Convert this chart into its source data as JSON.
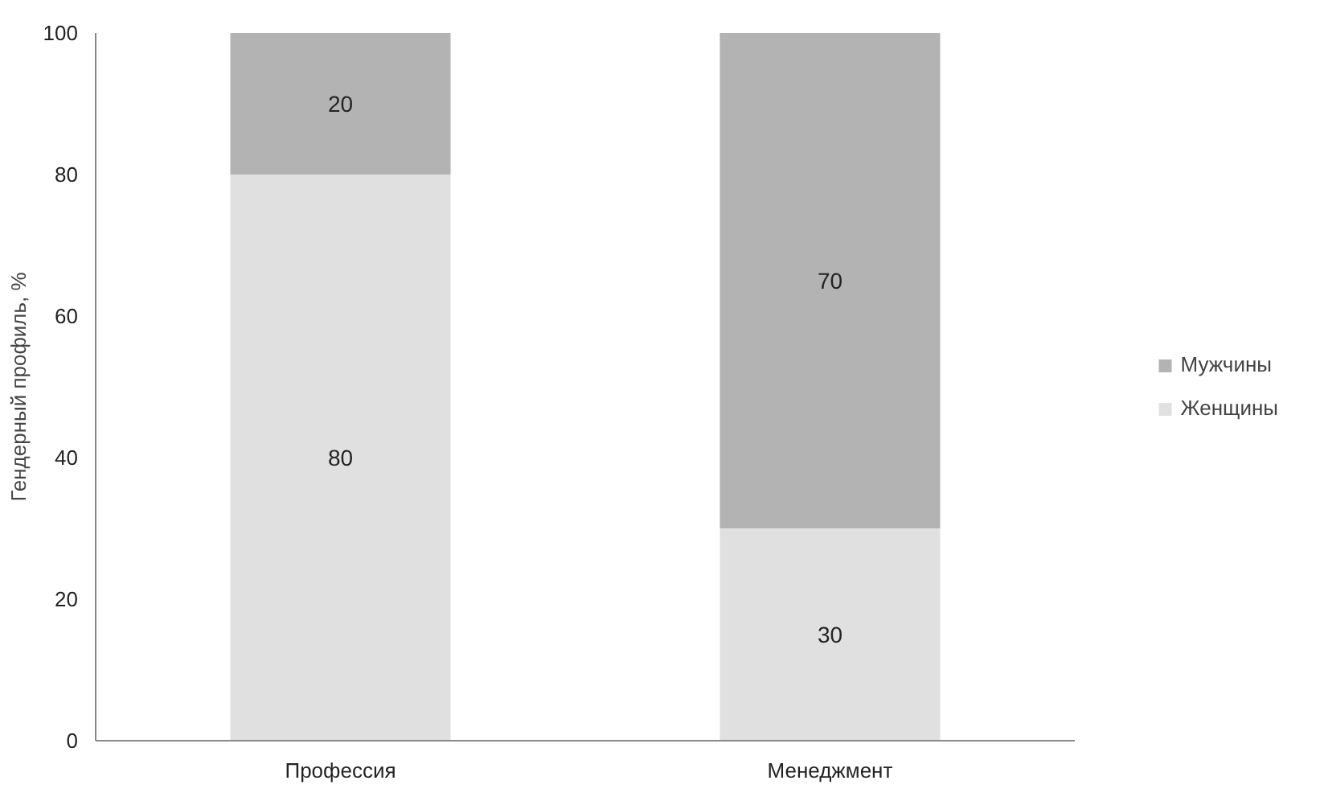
{
  "chart_data": {
    "type": "bar",
    "stacked": true,
    "ylabel": "Гендерный профиль, %",
    "categories": [
      "Профессия",
      "Менеджмент"
    ],
    "series": [
      {
        "name": "Женщины",
        "color": "#e0e0e0",
        "values": [
          80,
          30
        ]
      },
      {
        "name": "Мужчины",
        "color": "#b3b3b3",
        "values": [
          20,
          70
        ]
      }
    ],
    "ylim": [
      0,
      100
    ],
    "yticks": [
      0,
      20,
      40,
      60,
      80,
      100
    ],
    "grid": false,
    "legend": "right",
    "data_labels": true
  }
}
